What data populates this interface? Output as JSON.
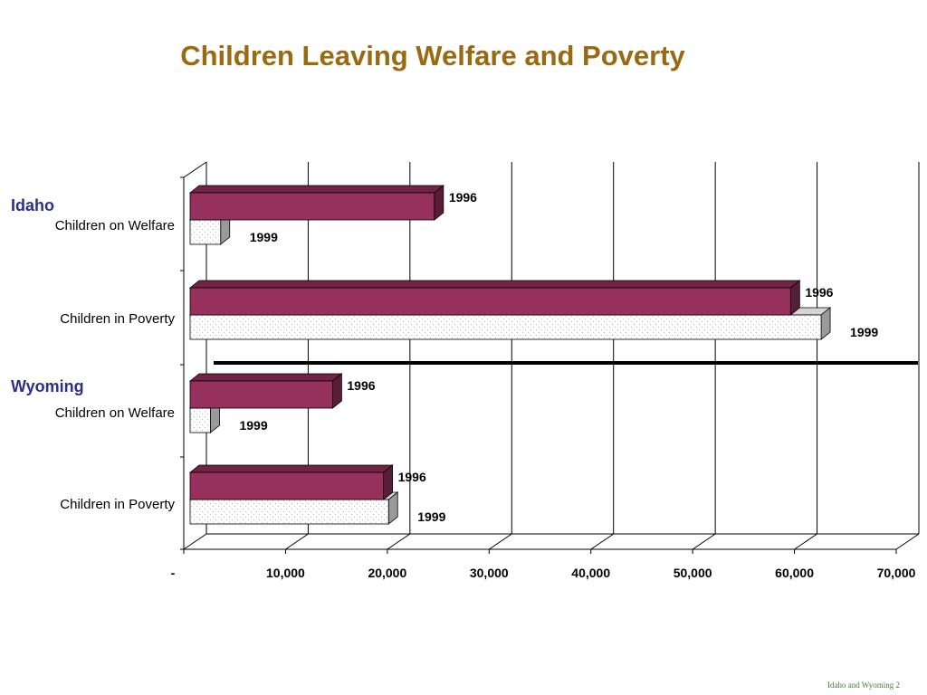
{
  "slide": {
    "title": "Children Leaving Welfare and Poverty",
    "footer": "Idaho and Wyoming 2"
  },
  "colors": {
    "title": "#9a6a12",
    "group_label": "#2e2e8a",
    "bar_1996": "#96305d",
    "bar_1999": "#ffffff"
  },
  "chart_data": {
    "type": "bar",
    "orientation": "horizontal",
    "title": "Children Leaving Welfare and Poverty",
    "groups": [
      "Idaho",
      "Wyoming"
    ],
    "categories": [
      {
        "group": "Idaho",
        "label": "Children on Welfare"
      },
      {
        "group": "Idaho",
        "label": "Children in Poverty"
      },
      {
        "group": "Wyoming",
        "label": "Children on Welfare"
      },
      {
        "group": "Wyoming",
        "label": "Children in Poverty"
      }
    ],
    "series": [
      {
        "name": "1996",
        "values": [
          24000,
          59000,
          14000,
          19000
        ]
      },
      {
        "name": "1999",
        "values": [
          3000,
          62000,
          2000,
          19500
        ]
      }
    ],
    "xlim": [
      0,
      70000
    ],
    "x_tick_labels": [
      "-",
      "10,000",
      "20,000",
      "30,000",
      "40,000",
      "50,000",
      "60,000",
      "70,000"
    ],
    "x_tick_values": [
      0,
      10000,
      20000,
      30000,
      40000,
      50000,
      60000,
      70000
    ],
    "grid": "vertical",
    "legend": "none"
  }
}
